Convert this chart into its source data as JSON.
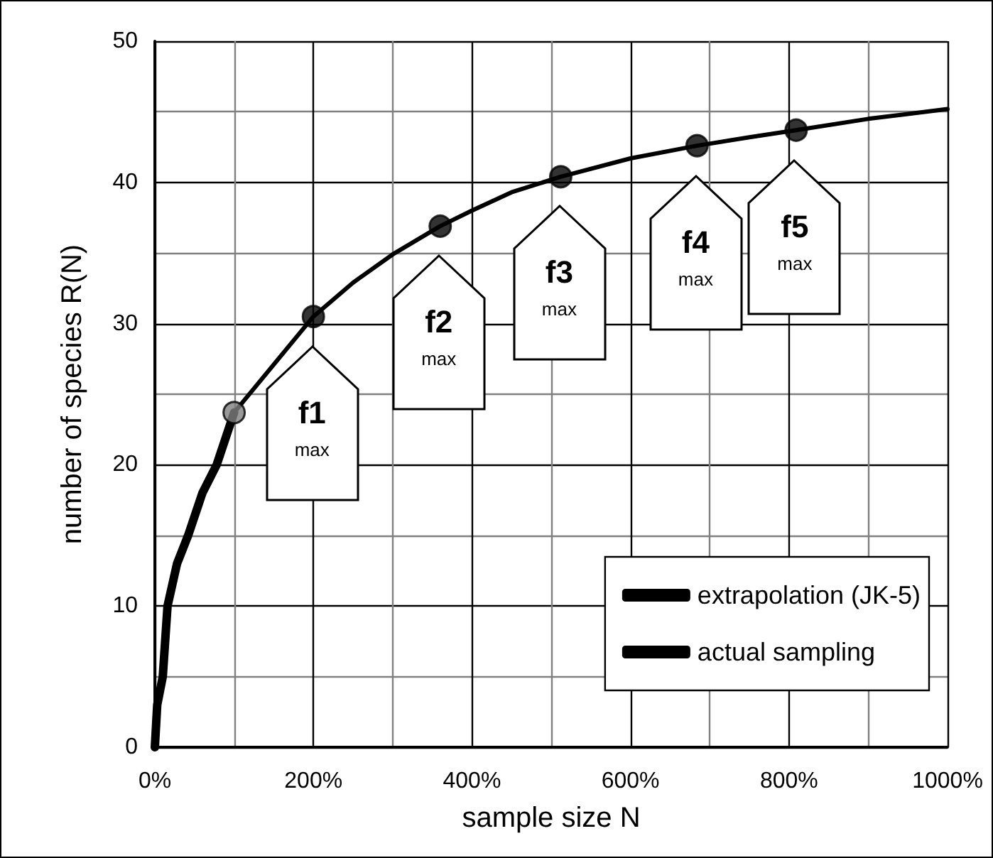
{
  "chart_data": {
    "type": "line",
    "xlabel": "sample size N",
    "ylabel": "number of species R(N)",
    "xlim": [
      0,
      1000
    ],
    "xticks": [
      {
        "value": 0,
        "label": "0%"
      },
      {
        "value": 200,
        "label": "200%"
      },
      {
        "value": 400,
        "label": "400%"
      },
      {
        "value": 600,
        "label": "600%"
      },
      {
        "value": 800,
        "label": "800%"
      },
      {
        "value": 1000,
        "label": "1000%"
      }
    ],
    "ylim": [
      0,
      50
    ],
    "yticks": [
      0,
      10,
      20,
      30,
      40,
      50
    ],
    "grid": true,
    "legend": "bottom right",
    "series": [
      {
        "name": "extrapolation (JK-5)",
        "color": "#000000",
        "x": [
          100,
          200,
          250,
          300,
          360,
          400,
          450,
          512,
          600,
          684,
          750,
          809,
          900,
          1000
        ],
        "values": [
          23.7,
          30.5,
          32.9,
          34.9,
          36.9,
          38,
          39.3,
          40.4,
          41.7,
          42.6,
          43.2,
          43.7,
          44.5,
          45.2
        ]
      },
      {
        "name": "actual sampling",
        "color": "#000000",
        "x": [
          0,
          3,
          10,
          16,
          28,
          42,
          60,
          78,
          100
        ],
        "values": [
          0,
          3,
          5,
          10,
          13,
          15,
          18,
          20,
          23.7
        ]
      },
      {
        "type": "scatter",
        "marker": "circle",
        "x": [
          100,
          200,
          360,
          512,
          684,
          809
        ],
        "values": [
          23.7,
          30.5,
          36.9,
          40.4,
          42.6,
          43.7
        ],
        "colors": [
          "#808080",
          "#000000",
          "#000000",
          "#000000",
          "#000000",
          "#000000"
        ]
      }
    ],
    "annotations": [
      {
        "text": "f1\nmax",
        "x": 200,
        "y": 30.5
      },
      {
        "text": "f2\nmax",
        "x": 360,
        "y": 36.9
      },
      {
        "text": "f3\nmax",
        "x": 512,
        "y": 40.4
      },
      {
        "text": "f4\nmax",
        "x": 684,
        "y": 42.6
      },
      {
        "text": "f5\nmax",
        "x": 809,
        "y": 43.7
      }
    ]
  }
}
